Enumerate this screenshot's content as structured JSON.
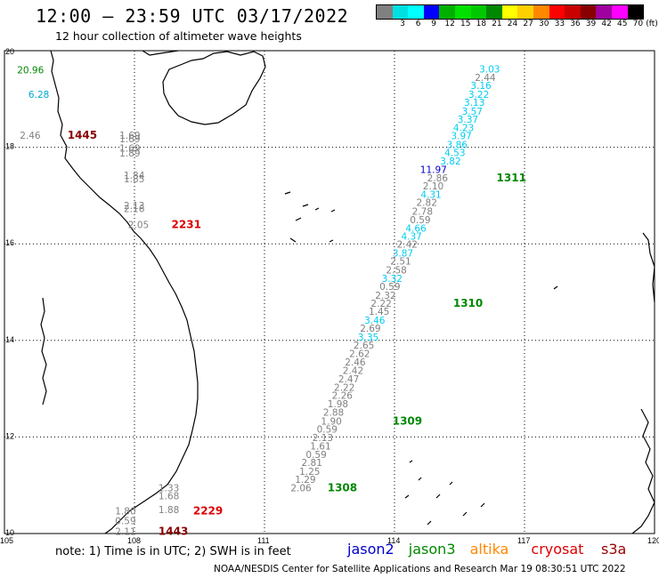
{
  "header": {
    "title": "12:00 – 23:59 UTC 03/17/2022",
    "subtitle": "12 hour collection of altimeter wave heights"
  },
  "legend": {
    "unit": "(ft)",
    "bins": [
      {
        "label": "",
        "color": "#808080"
      },
      {
        "label": "3",
        "color": "#00e0e0"
      },
      {
        "label": "6",
        "color": "#00ffff"
      },
      {
        "label": "9",
        "color": "#0000ff"
      },
      {
        "label": "12",
        "color": "#00b000"
      },
      {
        "label": "15",
        "color": "#00e000"
      },
      {
        "label": "18",
        "color": "#00c800"
      },
      {
        "label": "21",
        "color": "#008800"
      },
      {
        "label": "24",
        "color": "#ffff00"
      },
      {
        "label": "27",
        "color": "#ffd000"
      },
      {
        "label": "30",
        "color": "#ff8800"
      },
      {
        "label": "33",
        "color": "#ff0000"
      },
      {
        "label": "36",
        "color": "#c80000"
      },
      {
        "label": "39",
        "color": "#880000"
      },
      {
        "label": "42",
        "color": "#a000a0"
      },
      {
        "label": "45",
        "color": "#ff00ff"
      },
      {
        "label": "70",
        "color": "#000000"
      }
    ]
  },
  "axes": {
    "lon_labels": [
      "105",
      "108",
      "111",
      "114",
      "117",
      "120"
    ],
    "lat_labels": [
      "20",
      "18",
      "16",
      "14",
      "12",
      "10"
    ]
  },
  "map_labels": [
    {
      "text": "20.96",
      "color": "#008800",
      "lon": 105.6,
      "lat": 19.6
    },
    {
      "text": "6.28",
      "color": "#00aacc",
      "lon": 105.8,
      "lat": 19.1
    },
    {
      "text": "2.46",
      "color": "#808080",
      "lon": 105.6,
      "lat": 18.25
    },
    {
      "text": "1445",
      "color": "#880000",
      "lon": 106.7,
      "lat": 18.25,
      "bold": true
    },
    {
      "text": "1.69",
      "color": "#808080",
      "lon": 107.9,
      "lat": 18.25
    },
    {
      "text": "1.69",
      "color": "#808080",
      "lon": 107.9,
      "lat": 18.18
    },
    {
      "text": "1.69",
      "color": "#808080",
      "lon": 107.9,
      "lat": 17.98
    },
    {
      "text": "1.89",
      "color": "#808080",
      "lon": 107.9,
      "lat": 17.88
    },
    {
      "text": "1.84",
      "color": "#808080",
      "lon": 108.0,
      "lat": 17.42
    },
    {
      "text": "1.85",
      "color": "#808080",
      "lon": 108.0,
      "lat": 17.35
    },
    {
      "text": "2.13",
      "color": "#808080",
      "lon": 108.0,
      "lat": 16.8
    },
    {
      "text": "2.16",
      "color": "#808080",
      "lon": 108.0,
      "lat": 16.73
    },
    {
      "text": "2.05",
      "color": "#808080",
      "lon": 108.1,
      "lat": 16.4
    },
    {
      "text": "2231",
      "color": "#dd0000",
      "lon": 109.1,
      "lat": 16.4,
      "bold": true
    },
    {
      "text": "1.33",
      "color": "#808080",
      "lon": 108.8,
      "lat": 10.95
    },
    {
      "text": "1.68",
      "color": "#808080",
      "lon": 108.8,
      "lat": 10.78
    },
    {
      "text": "1.80",
      "color": "#808080",
      "lon": 107.8,
      "lat": 10.47
    },
    {
      "text": "1.88",
      "color": "#808080",
      "lon": 108.8,
      "lat": 10.5
    },
    {
      "text": "2229",
      "color": "#dd0000",
      "lon": 109.6,
      "lat": 10.47,
      "bold": true
    },
    {
      "text": "0.59",
      "color": "#808080",
      "lon": 107.8,
      "lat": 10.27
    },
    {
      "text": "2.11",
      "color": "#808080",
      "lon": 107.8,
      "lat": 10.05
    },
    {
      "text": "1443",
      "color": "#880000",
      "lon": 108.8,
      "lat": 10.05,
      "bold": true
    },
    {
      "text": "3.03",
      "color": "#00ccee",
      "lon": 116.2,
      "lat": 19.62
    },
    {
      "text": "2.44",
      "color": "#808080",
      "lon": 116.1,
      "lat": 19.45
    },
    {
      "text": "3.16",
      "color": "#00ccee",
      "lon": 116.0,
      "lat": 19.28
    },
    {
      "text": "3.22",
      "color": "#00ccee",
      "lon": 115.95,
      "lat": 19.1
    },
    {
      "text": "3.13",
      "color": "#00ccee",
      "lon": 115.85,
      "lat": 18.93
    },
    {
      "text": "3.57",
      "color": "#00ccee",
      "lon": 115.8,
      "lat": 18.75
    },
    {
      "text": "3.37",
      "color": "#00ccee",
      "lon": 115.7,
      "lat": 18.58
    },
    {
      "text": "4.23",
      "color": "#00ccee",
      "lon": 115.6,
      "lat": 18.41
    },
    {
      "text": "3.97",
      "color": "#00ccee",
      "lon": 115.55,
      "lat": 18.24
    },
    {
      "text": "3.86",
      "color": "#00ccee",
      "lon": 115.45,
      "lat": 18.06
    },
    {
      "text": "4.53",
      "color": "#00ccee",
      "lon": 115.4,
      "lat": 17.89
    },
    {
      "text": "3.82",
      "color": "#00ccee",
      "lon": 115.3,
      "lat": 17.72
    },
    {
      "text": "11.97",
      "color": "#0000cc",
      "lon": 114.9,
      "lat": 17.54
    },
    {
      "text": "1311",
      "color": "#008800",
      "lon": 116.6,
      "lat": 17.37,
      "bold": true
    },
    {
      "text": "2.86",
      "color": "#808080",
      "lon": 115.0,
      "lat": 17.37
    },
    {
      "text": "2.10",
      "color": "#808080",
      "lon": 114.9,
      "lat": 17.2
    },
    {
      "text": "4.31",
      "color": "#00ccee",
      "lon": 114.85,
      "lat": 17.03
    },
    {
      "text": "2.82",
      "color": "#808080",
      "lon": 114.75,
      "lat": 16.86
    },
    {
      "text": "2.78",
      "color": "#808080",
      "lon": 114.65,
      "lat": 16.68
    },
    {
      "text": "0.59",
      "color": "#808080",
      "lon": 114.6,
      "lat": 16.5
    },
    {
      "text": "4.66",
      "color": "#00ccee",
      "lon": 114.5,
      "lat": 16.33
    },
    {
      "text": "4.37",
      "color": "#00ccee",
      "lon": 114.4,
      "lat": 16.16
    },
    {
      "text": "2.42",
      "color": "#808080",
      "lon": 114.3,
      "lat": 15.99
    },
    {
      "text": "3.87",
      "color": "#00ccee",
      "lon": 114.2,
      "lat": 15.81
    },
    {
      "text": "2.51",
      "color": "#808080",
      "lon": 114.15,
      "lat": 15.64
    },
    {
      "text": "2.58",
      "color": "#808080",
      "lon": 114.05,
      "lat": 15.46
    },
    {
      "text": "3.32",
      "color": "#00ccee",
      "lon": 113.95,
      "lat": 15.29
    },
    {
      "text": "0.59",
      "color": "#808080",
      "lon": 113.9,
      "lat": 15.12
    },
    {
      "text": "2.32",
      "color": "#808080",
      "lon": 113.8,
      "lat": 14.94
    },
    {
      "text": "2.22",
      "color": "#808080",
      "lon": 113.7,
      "lat": 14.77
    },
    {
      "text": "1310",
      "color": "#008800",
      "lon": 115.6,
      "lat": 14.77,
      "bold": true
    },
    {
      "text": "1.45",
      "color": "#808080",
      "lon": 113.65,
      "lat": 14.6
    },
    {
      "text": "3.46",
      "color": "#00ccee",
      "lon": 113.55,
      "lat": 14.42
    },
    {
      "text": "2.69",
      "color": "#808080",
      "lon": 113.45,
      "lat": 14.25
    },
    {
      "text": "3.35",
      "color": "#00ccee",
      "lon": 113.4,
      "lat": 14.07
    },
    {
      "text": "2.65",
      "color": "#808080",
      "lon": 113.3,
      "lat": 13.9
    },
    {
      "text": "2.62",
      "color": "#808080",
      "lon": 113.2,
      "lat": 13.73
    },
    {
      "text": "2.46",
      "color": "#808080",
      "lon": 113.1,
      "lat": 13.55
    },
    {
      "text": "2.42",
      "color": "#808080",
      "lon": 113.05,
      "lat": 13.38
    },
    {
      "text": "2.47",
      "color": "#808080",
      "lon": 112.95,
      "lat": 13.2
    },
    {
      "text": "2.22",
      "color": "#808080",
      "lon": 112.85,
      "lat": 13.03
    },
    {
      "text": "2.26",
      "color": "#808080",
      "lon": 112.8,
      "lat": 12.86
    },
    {
      "text": "1.98",
      "color": "#808080",
      "lon": 112.7,
      "lat": 12.69
    },
    {
      "text": "2.88",
      "color": "#808080",
      "lon": 112.6,
      "lat": 12.51
    },
    {
      "text": "1309",
      "color": "#008800",
      "lon": 114.2,
      "lat": 12.33,
      "bold": true
    },
    {
      "text": "1.90",
      "color": "#808080",
      "lon": 112.55,
      "lat": 12.33
    },
    {
      "text": "0.59",
      "color": "#808080",
      "lon": 112.45,
      "lat": 12.16
    },
    {
      "text": "2.13",
      "color": "#808080",
      "lon": 112.35,
      "lat": 11.99
    },
    {
      "text": "1.61",
      "color": "#808080",
      "lon": 112.3,
      "lat": 11.81
    },
    {
      "text": "0.59",
      "color": "#808080",
      "lon": 112.2,
      "lat": 11.64
    },
    {
      "text": "2.81",
      "color": "#808080",
      "lon": 112.1,
      "lat": 11.47
    },
    {
      "text": "1.25",
      "color": "#808080",
      "lon": 112.05,
      "lat": 11.29
    },
    {
      "text": "1.29",
      "color": "#808080",
      "lon": 111.95,
      "lat": 11.12
    },
    {
      "text": "2.06",
      "color": "#808080",
      "lon": 111.85,
      "lat": 10.95
    },
    {
      "text": "1308",
      "color": "#008800",
      "lon": 112.7,
      "lat": 10.95,
      "bold": true
    }
  ],
  "footer": {
    "note": "note: 1) Time is in UTC; 2) SWH is in feet",
    "satellites": [
      {
        "name": "jason2",
        "color": "#0000cc"
      },
      {
        "name": "jason3",
        "color": "#008800"
      },
      {
        "name": "altika",
        "color": "#ff8800"
      },
      {
        "name": "cryosat",
        "color": "#dd0000"
      },
      {
        "name": "s3a",
        "color": "#990000"
      }
    ],
    "credit": "NOAA/NESDIS Center for Satellite Applications and Research    Mar 19 08:30:51 UTC 2022"
  }
}
